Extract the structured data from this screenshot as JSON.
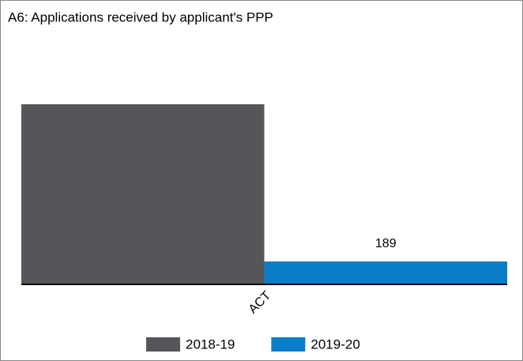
{
  "chart_data": {
    "type": "bar",
    "title": "A6: Applications received by applicant's PPP",
    "categories": [
      "ACT"
    ],
    "series": [
      {
        "name": "2018-19",
        "color": "#545659",
        "values": [
          1486
        ],
        "data_labels": false
      },
      {
        "name": "2019-20",
        "color": "#0a7dc8",
        "values": [
          189
        ],
        "data_labels": true
      }
    ],
    "legend": "bottom"
  }
}
